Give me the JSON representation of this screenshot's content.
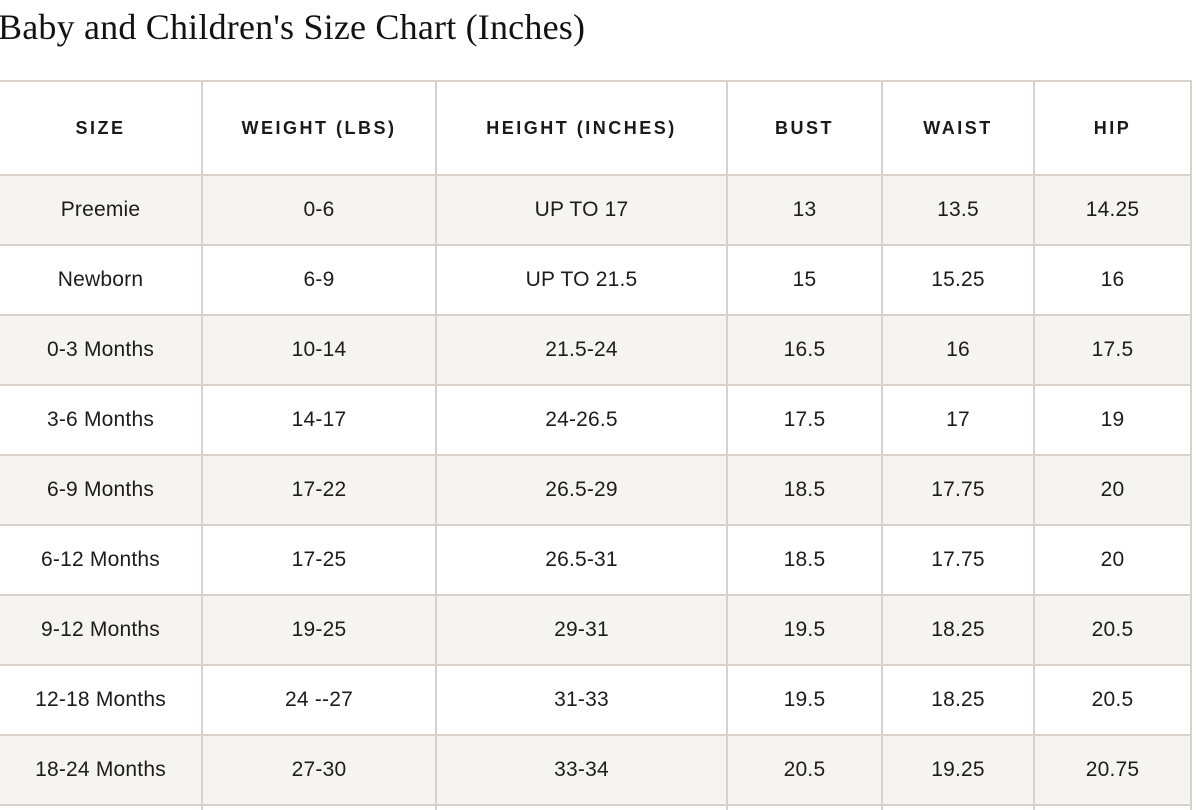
{
  "page": {
    "title": "Baby and Children's Size Chart (Inches)"
  },
  "colors": {
    "background": "#ffffff",
    "table_border": "#d8d2cb",
    "row_stripe": "#f6f4f1",
    "text": "#1c1c1c"
  },
  "table": {
    "headers": [
      "SIZE",
      "WEIGHT (LBS)",
      "HEIGHT (INCHES)",
      "BUST",
      "WAIST",
      "HIP"
    ],
    "rows": [
      [
        "Preemie",
        "0-6",
        "UP TO 17",
        "13",
        "13.5",
        "14.25"
      ],
      [
        "Newborn",
        "6-9",
        "UP TO 21.5",
        "15",
        "15.25",
        "16"
      ],
      [
        "0-3 Months",
        "10-14",
        "21.5-24",
        "16.5",
        "16",
        "17.5"
      ],
      [
        "3-6 Months",
        "14-17",
        "24-26.5",
        "17.5",
        "17",
        "19"
      ],
      [
        "6-9 Months",
        "17-22",
        "26.5-29",
        "18.5",
        "17.75",
        "20"
      ],
      [
        "6-12 Months",
        "17-25",
        "26.5-31",
        "18.5",
        "17.75",
        "20"
      ],
      [
        "9-12 Months",
        "19-25",
        "29-31",
        "19.5",
        "18.25",
        "20.5"
      ],
      [
        "12-18 Months",
        "24 --27",
        "31-33",
        "19.5",
        "18.25",
        "20.5"
      ],
      [
        "18-24 Months",
        "27-30",
        "33-34",
        "20.5",
        "19.25",
        "20.75"
      ]
    ]
  }
}
